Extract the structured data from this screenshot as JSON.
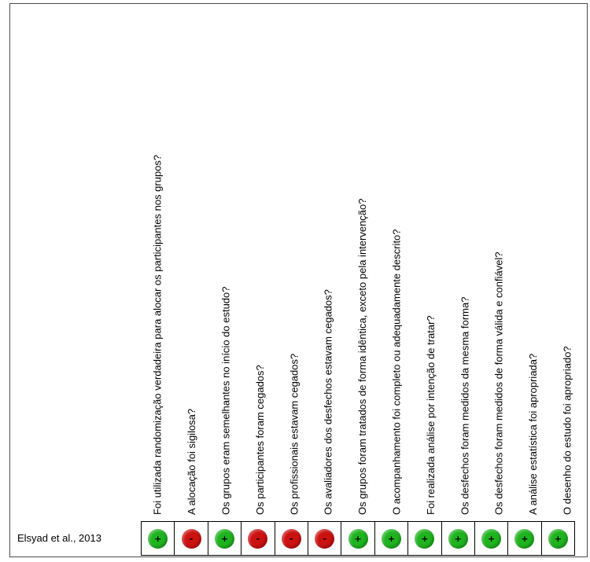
{
  "chart_data": {
    "type": "table",
    "questions": [
      "Foi utilizada randomização verdadeira para alocar os participantes nos grupos?",
      "A alocação foi sigilosa?",
      "Os grupos eram semelhantes no início do estudo?",
      "Os participantes foram cegados?",
      "Os profissionais estavam cegados?",
      "Os avaliadores dos desfechos estavam cegados?",
      "Os grupos foram tratados de forma idêntica, exceto pela intervenção?",
      "O acompanhamento foi completo ou adequadamente descrito?",
      "Foi realizada análise por intenção de tratar?",
      "Os desfechos foram medidos da mesma forma?",
      "Os desfechos foram medidos de forma válida e confiável?",
      "A análise estatística foi apropriada?",
      "O desenho do estudo foi apropriado?"
    ],
    "studies": [
      {
        "name": "Elsyad et al., 2013",
        "judgements": [
          "low",
          "high",
          "low",
          "high",
          "high",
          "high",
          "low",
          "low",
          "low",
          "low",
          "low",
          "low",
          "low"
        ]
      }
    ],
    "symbols": {
      "low": "+",
      "high": "-"
    },
    "colors": {
      "low": "#1fb31f",
      "high": "#cc1111"
    }
  }
}
